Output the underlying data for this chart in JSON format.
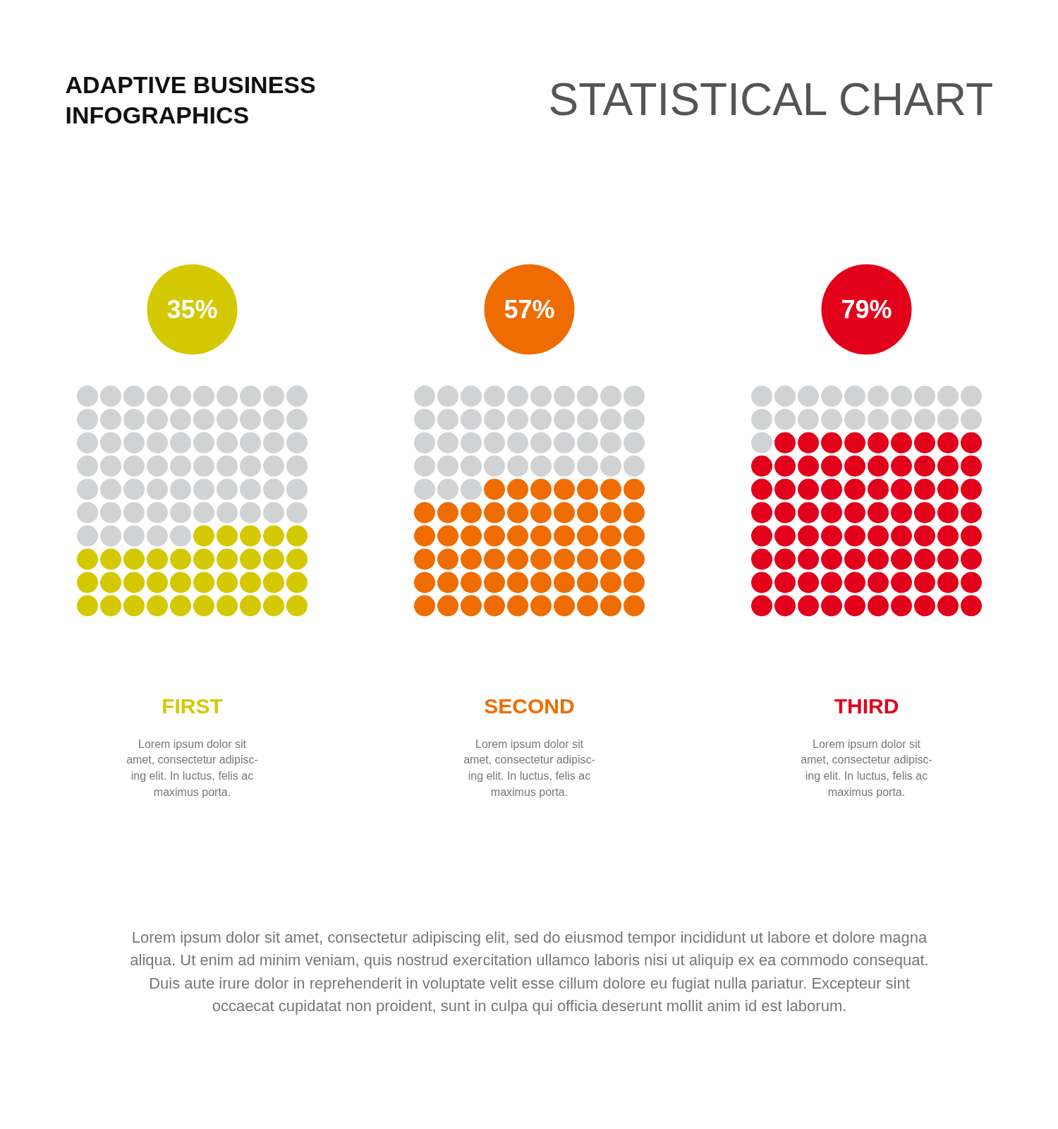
{
  "chart_data": [
    {
      "type": "other",
      "title": "STATISTICAL CHART",
      "subtitle": "ADAPTIVE BUSINESS\nINFOGRAPHICS",
      "annotations": [
        "Lorem ipsum dolor sit amet, consectetur adipiscing elit, sed do eiusmod tempor incididunt ut labore et dolore magna\naliqua. Ut enim ad minim veniam, quis nostrud exercitation ullamco laboris nisi ut aliquip ex ea commodo consequat.\nDuis aute irure dolor in reprehenderit in voluptate velit esse cillum dolore eu fugiat nulla pariatur. Excepteur sint\noccaecat cupidatat non proident, sunt in culpa qui officia deserunt mollit anim id est laborum."
      ]
    },
    {
      "type": "other",
      "title": "FIRST",
      "values": [
        35
      ],
      "value_labels": [
        "35%"
      ],
      "colors": [
        "#d4c800"
      ],
      "annotations": [
        "Lorem ipsum dolor sit\namet, consectetur adipisc-\ning elit. In luctus, felis ac\nmaximus porta."
      ]
    },
    {
      "type": "other",
      "title": "SECOND",
      "values": [
        57
      ],
      "value_labels": [
        "57%"
      ],
      "colors": [
        "#ee6c00"
      ],
      "annotations": [
        "Lorem ipsum dolor sit\namet, consectetur adipisc-\ning elit. In luctus, felis ac\nmaximus porta."
      ]
    },
    {
      "type": "other",
      "title": "THIRD",
      "values": [
        79
      ],
      "value_labels": [
        "79%"
      ],
      "colors": [
        "#e2001a"
      ],
      "annotations": [
        "Lorem ipsum dolor sit\namet, consectetur adipisc-\ning elit. In luctus, felis ac\nmaximus porta."
      ]
    }
  ]
}
